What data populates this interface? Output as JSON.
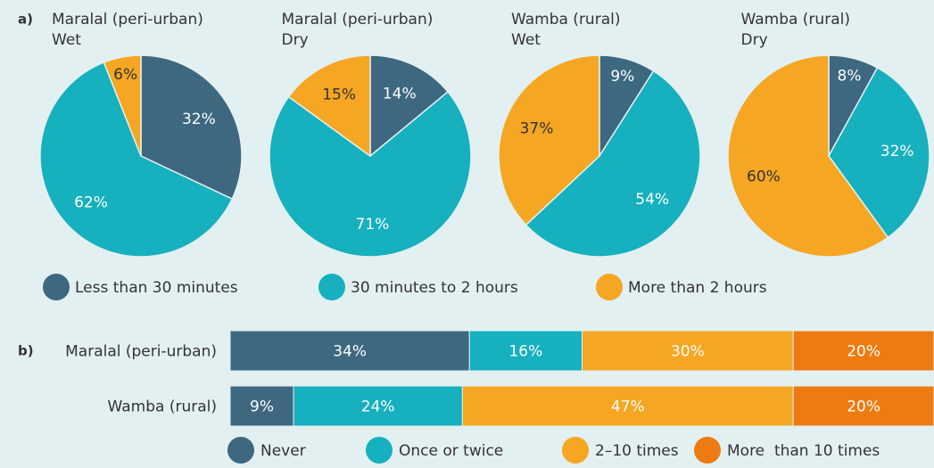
{
  "chart_data": [
    {
      "type": "pie",
      "label": "a)",
      "categories": [
        "Less than 30 minutes",
        "30 minutes to 2 hours",
        "More than 2 hours"
      ],
      "colors": [
        "#3d6880",
        "#16b0be",
        "#f5a623"
      ],
      "pies": [
        {
          "title": "Maralal (peri-urban)",
          "subtitle": "Wet",
          "values": [
            32,
            62,
            6
          ],
          "value_labels": [
            "32%",
            "62%",
            "6%"
          ]
        },
        {
          "title": "Maralal (peri-urban)",
          "subtitle": "Dry",
          "values": [
            14,
            71,
            15
          ],
          "value_labels": [
            "14%",
            "71%",
            "15%"
          ]
        },
        {
          "title": "Wamba (rural)",
          "subtitle": "Wet",
          "values": [
            9,
            54,
            37
          ],
          "value_labels": [
            "9%",
            "54%",
            "37%"
          ]
        },
        {
          "title": "Wamba (rural)",
          "subtitle": "Dry",
          "values": [
            8,
            32,
            60
          ],
          "value_labels": [
            "8%",
            "32%",
            "60%"
          ]
        }
      ]
    },
    {
      "type": "bar",
      "label": "b)",
      "categories": [
        "Maralal (peri-urban)",
        "Wamba (rural)"
      ],
      "xlim": [
        0,
        100
      ],
      "series": [
        {
          "name": "Never",
          "color": "#3d6880",
          "values": [
            34,
            9
          ],
          "value_labels": [
            "34%",
            "9%"
          ]
        },
        {
          "name": "Once or twice",
          "color": "#16b0be",
          "values": [
            16,
            24
          ],
          "value_labels": [
            "16%",
            "24%"
          ]
        },
        {
          "name": "2–10 times",
          "color": "#f5a623",
          "values": [
            30,
            47
          ],
          "value_labels": [
            "30%",
            "47%"
          ]
        },
        {
          "name": "More  than 10 times",
          "color": "#ee7b11",
          "values": [
            20,
            20
          ],
          "value_labels": [
            "20%",
            "20%"
          ]
        }
      ]
    }
  ]
}
